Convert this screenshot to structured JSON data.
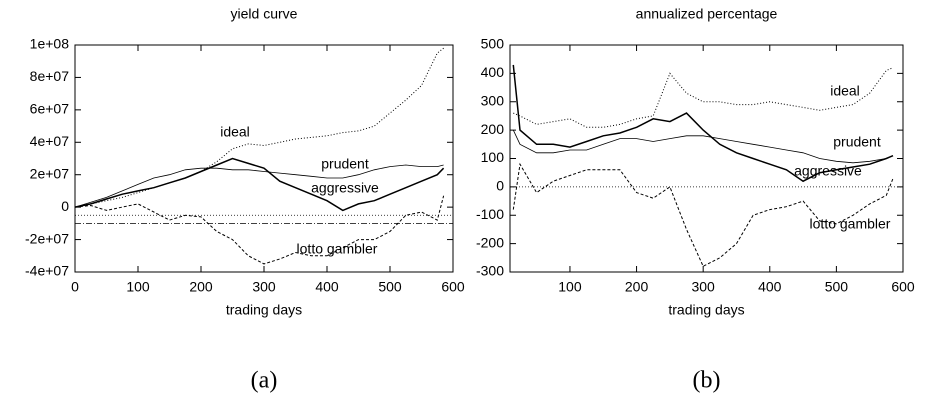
{
  "chart_data": [
    {
      "type": "line",
      "title": "yield curve",
      "x_label": "trading days",
      "caption": "(a)",
      "xlim": [
        0,
        600
      ],
      "xticks": [
        0,
        100,
        200,
        300,
        400,
        500,
        600
      ],
      "ylim": [
        -40000000,
        100000000
      ],
      "yticks": [
        {
          "value": -40000000,
          "label": "-4e+07"
        },
        {
          "value": -20000000,
          "label": "-2e+07"
        },
        0,
        {
          "value": 20000000,
          "label": "2e+07"
        },
        {
          "value": 40000000,
          "label": "4e+07"
        },
        {
          "value": 60000000,
          "label": "6e+07"
        },
        {
          "value": 80000000,
          "label": "8e+07"
        },
        {
          "value": 100000000,
          "label": "1e+08"
        }
      ],
      "hlines": [
        {
          "value": -5000000,
          "dash": "1,2"
        },
        {
          "value": -10000000,
          "dash": "6,2,1,2"
        }
      ],
      "x": [
        0,
        25,
        50,
        75,
        100,
        125,
        150,
        175,
        200,
        225,
        250,
        275,
        300,
        325,
        350,
        375,
        400,
        425,
        450,
        475,
        500,
        525,
        550,
        575,
        585
      ],
      "series": [
        {
          "name": "ideal",
          "color": "#000000",
          "dash": "1,2",
          "width": 1,
          "values": [
            0,
            2000000,
            4000000,
            6000000,
            9000000,
            12000000,
            15000000,
            18000000,
            22000000,
            28000000,
            36000000,
            39000000,
            38000000,
            40000000,
            42000000,
            43000000,
            44000000,
            46000000,
            47000000,
            50000000,
            58000000,
            66000000,
            75000000,
            95000000,
            98000000
          ]
        },
        {
          "name": "prudent",
          "color": "#000000",
          "dash": "none",
          "width": 0.8,
          "values": [
            0,
            3000000,
            6000000,
            10000000,
            14000000,
            18000000,
            20000000,
            23000000,
            24000000,
            24000000,
            23000000,
            23000000,
            22000000,
            21000000,
            20000000,
            19000000,
            18000000,
            18000000,
            20000000,
            23000000,
            25000000,
            26000000,
            25000000,
            25000000,
            26000000
          ]
        },
        {
          "name": "aggressive",
          "color": "#000000",
          "dash": "none",
          "width": 1.5,
          "values": [
            0,
            2000000,
            5000000,
            8000000,
            10000000,
            12000000,
            15000000,
            18000000,
            22000000,
            26000000,
            30000000,
            27000000,
            24000000,
            16000000,
            12000000,
            8000000,
            4000000,
            -2000000,
            2000000,
            4000000,
            8000000,
            12000000,
            16000000,
            20000000,
            24000000
          ]
        },
        {
          "name": "lotto gambler",
          "color": "#000000",
          "dash": "3,2",
          "width": 1,
          "values": [
            0,
            1000000,
            -2000000,
            0,
            2000000,
            -3000000,
            -8000000,
            -5000000,
            -6000000,
            -15000000,
            -20000000,
            -30000000,
            -35000000,
            -32000000,
            -28000000,
            -30000000,
            -30000000,
            -25000000,
            -20000000,
            -20000000,
            -15000000,
            -5000000,
            -3000000,
            -8000000,
            7000000
          ]
        }
      ]
    },
    {
      "type": "line",
      "title": "annualized percentage",
      "x_label": "trading days",
      "caption": "(b)",
      "xlim": [
        10,
        600
      ],
      "xticks": [
        100,
        200,
        300,
        400,
        500,
        600
      ],
      "ylim": [
        -300,
        500
      ],
      "yticks": [
        -300,
        -200,
        -100,
        0,
        100,
        200,
        300,
        400,
        500
      ],
      "hlines": [
        {
          "value": 0,
          "dash": "1,2"
        }
      ],
      "x": [
        15,
        25,
        50,
        75,
        100,
        125,
        150,
        175,
        200,
        225,
        250,
        275,
        300,
        325,
        350,
        375,
        400,
        425,
        450,
        475,
        500,
        525,
        550,
        575,
        585
      ],
      "series": [
        {
          "name": "ideal",
          "color": "#000000",
          "dash": "1,2",
          "width": 1,
          "values": [
            260,
            250,
            220,
            230,
            240,
            210,
            210,
            220,
            240,
            250,
            400,
            330,
            300,
            300,
            290,
            290,
            300,
            290,
            280,
            270,
            280,
            290,
            330,
            410,
            420
          ]
        },
        {
          "name": "prudent",
          "color": "#000000",
          "dash": "none",
          "width": 0.8,
          "values": [
            200,
            150,
            120,
            120,
            130,
            130,
            150,
            170,
            170,
            160,
            170,
            180,
            180,
            170,
            160,
            150,
            140,
            130,
            120,
            100,
            90,
            85,
            90,
            100,
            110
          ]
        },
        {
          "name": "aggressive",
          "color": "#000000",
          "dash": "none",
          "width": 1.5,
          "values": [
            430,
            200,
            150,
            150,
            140,
            160,
            180,
            190,
            210,
            240,
            230,
            260,
            200,
            150,
            120,
            100,
            80,
            60,
            20,
            50,
            60,
            70,
            80,
            100,
            110
          ]
        },
        {
          "name": "lotto gambler",
          "color": "#000000",
          "dash": "3,2",
          "width": 1,
          "values": [
            -80,
            80,
            -20,
            20,
            40,
            60,
            60,
            60,
            -20,
            -40,
            0,
            -150,
            -280,
            -250,
            -200,
            -100,
            -80,
            -70,
            -50,
            -120,
            -130,
            -100,
            -60,
            -30,
            30
          ]
        }
      ]
    }
  ]
}
